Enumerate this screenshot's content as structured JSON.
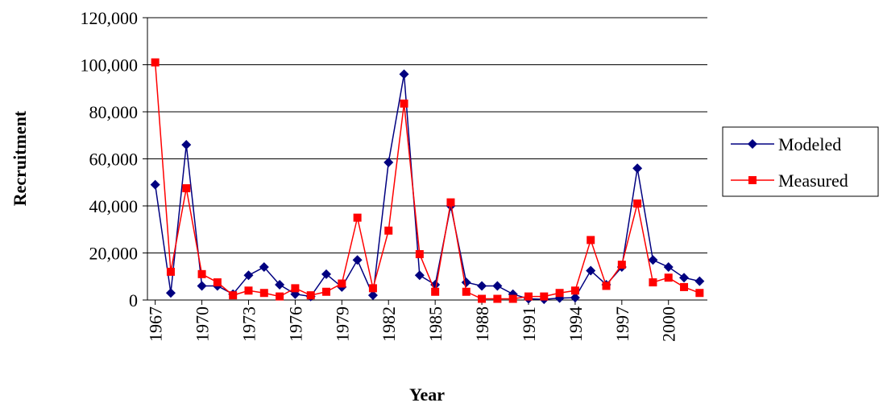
{
  "chart_data": {
    "type": "line",
    "x_label": "Year",
    "y_label": "Recruitment",
    "x": [
      1967,
      1968,
      1969,
      1970,
      1971,
      1972,
      1973,
      1974,
      1975,
      1976,
      1977,
      1978,
      1979,
      1980,
      1981,
      1982,
      1983,
      1984,
      1985,
      1986,
      1987,
      1988,
      1989,
      1990,
      1991,
      1992,
      1993,
      1994,
      1995,
      1996,
      1997,
      1998,
      1999,
      2000,
      2001,
      2002
    ],
    "series": [
      {
        "name": "Modeled",
        "color": "#000080",
        "marker": "diamond",
        "values": [
          49000,
          3000,
          66000,
          6000,
          6000,
          2500,
          10500,
          14000,
          6500,
          2500,
          1500,
          11000,
          5500,
          17000,
          2000,
          58500,
          96000,
          10500,
          6500,
          40000,
          7500,
          6000,
          6000,
          2500,
          500,
          300,
          800,
          1000,
          12500,
          6500,
          14000,
          56000,
          17000,
          14000,
          9500,
          8000
        ]
      },
      {
        "name": "Measured",
        "color": "#ff0000",
        "marker": "square",
        "values": [
          101000,
          12000,
          47500,
          11000,
          7500,
          2000,
          4000,
          3000,
          1500,
          5000,
          2000,
          3500,
          7000,
          35000,
          5000,
          29500,
          83500,
          19500,
          3500,
          41500,
          3500,
          500,
          500,
          500,
          1500,
          1500,
          3000,
          4000,
          25500,
          6000,
          15000,
          41000,
          7500,
          9500,
          5500,
          3000
        ]
      }
    ],
    "xlim": [
      1966.5,
      2002.5
    ],
    "xticks": [
      1967,
      1970,
      1973,
      1976,
      1979,
      1982,
      1985,
      1988,
      1991,
      1994,
      1997,
      2000
    ],
    "ylim": [
      0,
      120000
    ],
    "yticks": [
      0,
      {
        "value": 20000,
        "label": "20,000"
      },
      {
        "value": 40000,
        "label": "40,000"
      },
      {
        "value": 60000,
        "label": "60,000"
      },
      {
        "value": 80000,
        "label": "80,000"
      },
      {
        "value": 100000,
        "label": "100,000"
      },
      {
        "value": 120000,
        "label": "120,000"
      }
    ],
    "grid": true,
    "legend": "right"
  }
}
